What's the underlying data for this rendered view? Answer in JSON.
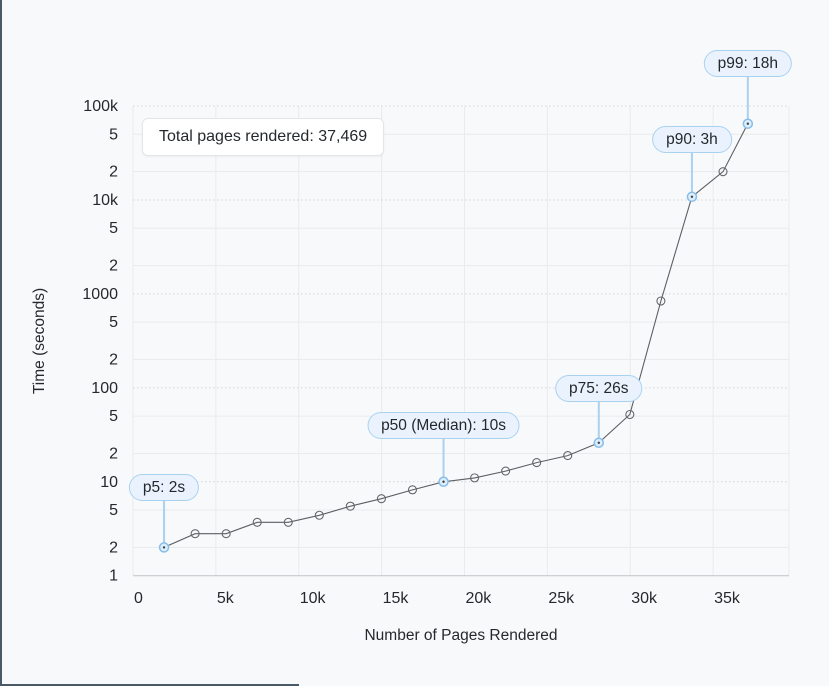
{
  "tooltip": {
    "text": "Total pages rendered: 37,469"
  },
  "chart_data": {
    "type": "line",
    "title": "",
    "xlabel": "Number of Pages Rendered",
    "ylabel": "Time (seconds)",
    "x_scale": "linear",
    "y_scale": "log",
    "x_domain": [
      0,
      40000
    ],
    "y_domain": [
      1,
      100000
    ],
    "grid": true,
    "total_pages_rendered": 37469,
    "x_ticks": [
      {
        "value": 0,
        "label": "0"
      },
      {
        "value": 5000,
        "label": "5k"
      },
      {
        "value": 10000,
        "label": "10k"
      },
      {
        "value": 15000,
        "label": "15k"
      },
      {
        "value": 20000,
        "label": "20k"
      },
      {
        "value": 25000,
        "label": "25k"
      },
      {
        "value": 30000,
        "label": "30k"
      },
      {
        "value": 35000,
        "label": "35k"
      }
    ],
    "y_ticks": [
      {
        "value": 1,
        "label": "1"
      },
      {
        "value": 2,
        "label": "2"
      },
      {
        "value": 5,
        "label": "5"
      },
      {
        "value": 10,
        "label": "10"
      },
      {
        "value": 20,
        "label": "2"
      },
      {
        "value": 50,
        "label": "5"
      },
      {
        "value": 100,
        "label": "100"
      },
      {
        "value": 200,
        "label": "2"
      },
      {
        "value": 500,
        "label": "5"
      },
      {
        "value": 1000,
        "label": "1000"
      },
      {
        "value": 2000,
        "label": "2"
      },
      {
        "value": 5000,
        "label": "5"
      },
      {
        "value": 10000,
        "label": "10k"
      },
      {
        "value": 20000,
        "label": "2"
      },
      {
        "value": 50000,
        "label": "5"
      },
      {
        "value": 100000,
        "label": "100k"
      }
    ],
    "points": [
      {
        "percentile": 5,
        "pages": 1873,
        "seconds": 2
      },
      {
        "percentile": 10,
        "pages": 3747,
        "seconds": 2.8
      },
      {
        "percentile": 15,
        "pages": 5620,
        "seconds": 2.8
      },
      {
        "percentile": 20,
        "pages": 7494,
        "seconds": 3.7
      },
      {
        "percentile": 25,
        "pages": 9367,
        "seconds": 3.7
      },
      {
        "percentile": 30,
        "pages": 11241,
        "seconds": 4.4
      },
      {
        "percentile": 35,
        "pages": 13114,
        "seconds": 5.5
      },
      {
        "percentile": 40,
        "pages": 14988,
        "seconds": 6.6
      },
      {
        "percentile": 45,
        "pages": 16861,
        "seconds": 8.2
      },
      {
        "percentile": 50,
        "pages": 18735,
        "seconds": 10
      },
      {
        "percentile": 55,
        "pages": 20608,
        "seconds": 11
      },
      {
        "percentile": 60,
        "pages": 22481,
        "seconds": 13
      },
      {
        "percentile": 65,
        "pages": 24355,
        "seconds": 16
      },
      {
        "percentile": 70,
        "pages": 26228,
        "seconds": 19
      },
      {
        "percentile": 75,
        "pages": 28102,
        "seconds": 26
      },
      {
        "percentile": 80,
        "pages": 29975,
        "seconds": 52
      },
      {
        "percentile": 85,
        "pages": 31849,
        "seconds": 840
      },
      {
        "percentile": 90,
        "pages": 33722,
        "seconds": 10800
      },
      {
        "percentile": 95,
        "pages": 35596,
        "seconds": 20000
      },
      {
        "percentile": 99,
        "pages": 37094,
        "seconds": 64800
      }
    ],
    "annotations": [
      {
        "label": "p5: 2s",
        "percentile": 5,
        "pill_top": 474
      },
      {
        "label": "p50 (Median): 10s",
        "percentile": 50,
        "pill_top": 412
      },
      {
        "label": "p75: 26s",
        "percentile": 75,
        "pill_top": 375
      },
      {
        "label": "p90: 3h",
        "percentile": 90,
        "pill_top": 126
      },
      {
        "label": "p99: 18h",
        "percentile": 99,
        "pill_top": 50
      }
    ],
    "colors": {
      "background": "#f8f9fa",
      "line": "#5b6065",
      "marker_stroke": "#63686d",
      "grid_solid": "#e9ebec",
      "grid_dotted": "#d2d5d8",
      "axis_line": "#bfc3c6",
      "accent_blue": "#a9d2f1",
      "accent_blue_fill": "#eaf3fd",
      "marker_blue_stroke": "#88bde9",
      "marker_blue_fill": "#ddeefb",
      "text": "#25292d",
      "window_edge": "#4a5968"
    }
  }
}
